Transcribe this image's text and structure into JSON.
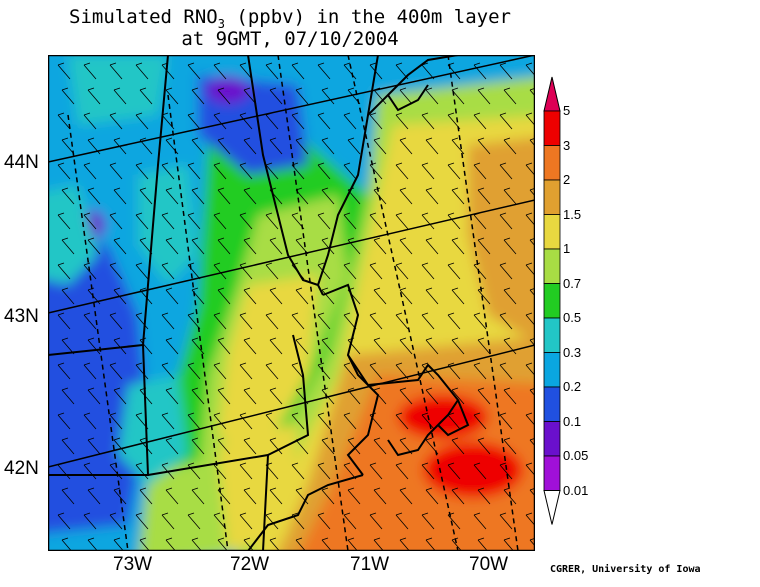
{
  "title": {
    "line1": "Simulated RNO3 (ppbv) in the 400m layer",
    "line2": "at 9GMT, 07/10/2004"
  },
  "lat_labels": [
    "44N",
    "43N",
    "42N"
  ],
  "lon_labels": [
    "73W",
    "72W",
    "71W",
    "70W"
  ],
  "colorbar": {
    "labels": [
      "5",
      "3",
      "2",
      "1.5",
      "1",
      "0.7",
      "0.5",
      "0.3",
      "0.2",
      "0.1",
      "0.05",
      "0.01"
    ],
    "colors": [
      "#ee0000",
      "#ee7722",
      "#e0a030",
      "#e8d840",
      "#a8dd44",
      "#22cc22",
      "#22c6c6",
      "#0aa6e0",
      "#2050e0",
      "#6a10cc",
      "#a010d8"
    ],
    "top_arrow_color": "#dd0055",
    "bottom_arrow_color": "#ffffff"
  },
  "credit": "CGRER, University of Iowa"
}
